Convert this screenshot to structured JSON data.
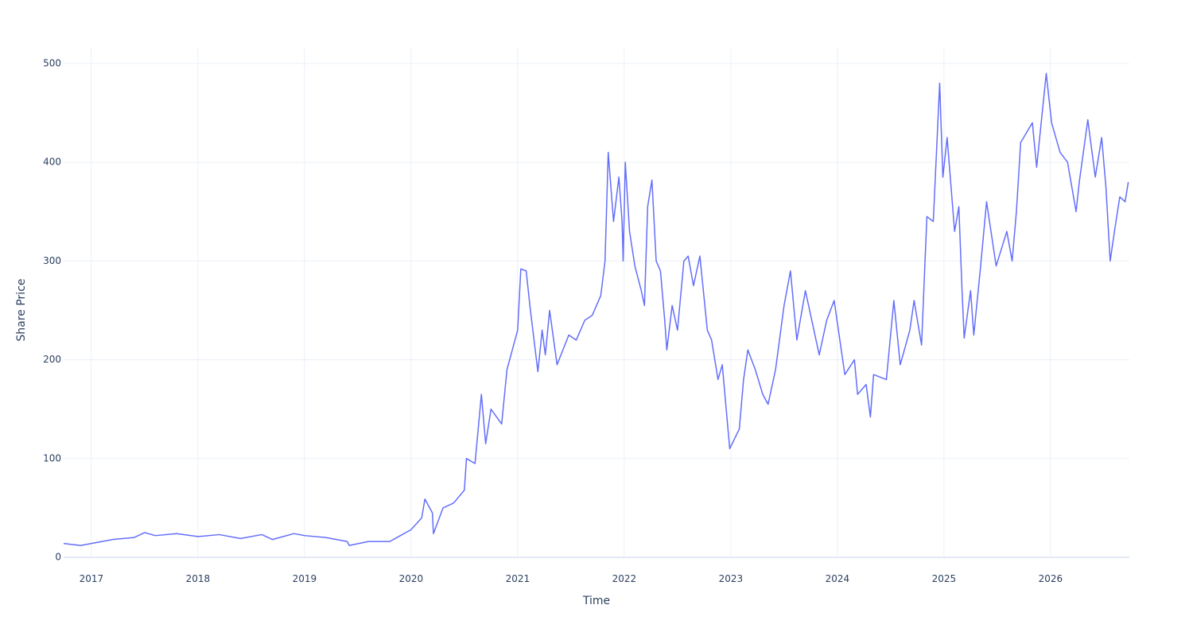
{
  "chart_data": {
    "type": "line",
    "x_label": "Time",
    "y_label": "Share Price",
    "x": [
      2016.74,
      2016.9,
      2017.0,
      2017.2,
      2017.4,
      2017.5,
      2017.6,
      2017.8,
      2018.0,
      2018.2,
      2018.4,
      2018.6,
      2018.7,
      2018.9,
      2019.0,
      2019.2,
      2019.4,
      2019.42,
      2019.6,
      2019.8,
      2019.9,
      2020.0,
      2020.1,
      2020.13,
      2020.2,
      2020.21,
      2020.3,
      2020.4,
      2020.5,
      2020.52,
      2020.6,
      2020.66,
      2020.7,
      2020.75,
      2020.85,
      2020.9,
      2021.0,
      2021.03,
      2021.08,
      2021.12,
      2021.19,
      2021.23,
      2021.26,
      2021.3,
      2021.37,
      2021.48,
      2021.55,
      2021.63,
      2021.7,
      2021.78,
      2021.82,
      2021.85,
      2021.9,
      2021.95,
      2021.98,
      2021.99,
      2022.01,
      2022.05,
      2022.1,
      2022.16,
      2022.19,
      2022.22,
      2022.26,
      2022.3,
      2022.34,
      2022.38,
      2022.4,
      2022.45,
      2022.5,
      2022.56,
      2022.6,
      2022.65,
      2022.71,
      2022.78,
      2022.82,
      2022.88,
      2022.92,
      2022.99,
      2023.08,
      2023.12,
      2023.16,
      2023.23,
      2023.3,
      2023.35,
      2023.42,
      2023.5,
      2023.56,
      2023.62,
      2023.7,
      2023.75,
      2023.83,
      2023.9,
      2023.97,
      2024.07,
      2024.16,
      2024.19,
      2024.27,
      2024.31,
      2024.34,
      2024.46,
      2024.53,
      2024.59,
      2024.68,
      2024.72,
      2024.79,
      2024.84,
      2024.9,
      2024.96,
      2024.99,
      2025.03,
      2025.1,
      2025.14,
      2025.17,
      2025.19,
      2025.25,
      2025.28,
      2025.34,
      2025.4,
      2025.49,
      2025.59,
      2025.64,
      2025.68,
      2025.72,
      2025.83,
      2025.87,
      2025.96,
      2026.01,
      2026.09,
      2026.16,
      2026.24,
      2026.27,
      2026.35,
      2026.42,
      2026.48,
      2026.52,
      2026.56,
      2026.6,
      2026.65,
      2026.7,
      2026.73
    ],
    "values": [
      14,
      12,
      14,
      18,
      20,
      25,
      22,
      24,
      21,
      23,
      19,
      23,
      18,
      24,
      22,
      20,
      16,
      12,
      16,
      16,
      22,
      28,
      40,
      59,
      45,
      24,
      50,
      55,
      68,
      100,
      95,
      165,
      115,
      150,
      135,
      190,
      230,
      292,
      290,
      250,
      188,
      230,
      205,
      250,
      195,
      225,
      220,
      240,
      245,
      265,
      300,
      410,
      340,
      385,
      340,
      300,
      400,
      330,
      295,
      270,
      255,
      355,
      382,
      300,
      290,
      240,
      210,
      255,
      230,
      300,
      305,
      275,
      305,
      230,
      220,
      180,
      195,
      110,
      130,
      180,
      210,
      190,
      165,
      155,
      190,
      255,
      290,
      220,
      270,
      245,
      205,
      240,
      260,
      185,
      200,
      165,
      175,
      142,
      185,
      180,
      260,
      195,
      230,
      260,
      215,
      345,
      340,
      480,
      385,
      425,
      330,
      355,
      270,
      222,
      270,
      225,
      290,
      360,
      295,
      330,
      300,
      350,
      420,
      440,
      395,
      490,
      440,
      410,
      400,
      350,
      380,
      443,
      385,
      425,
      375,
      300,
      330,
      365,
      360,
      380
    ],
    "color": "#636efa",
    "xlim": [
      2016.74,
      2026.74
    ],
    "xticks": [
      2017,
      2018,
      2019,
      2020,
      2021,
      2022,
      2023,
      2024,
      2025,
      2026
    ],
    "ylim": [
      -2,
      516
    ],
    "yticks": [
      0,
      100,
      200,
      300,
      400,
      500
    ],
    "grid": true
  }
}
